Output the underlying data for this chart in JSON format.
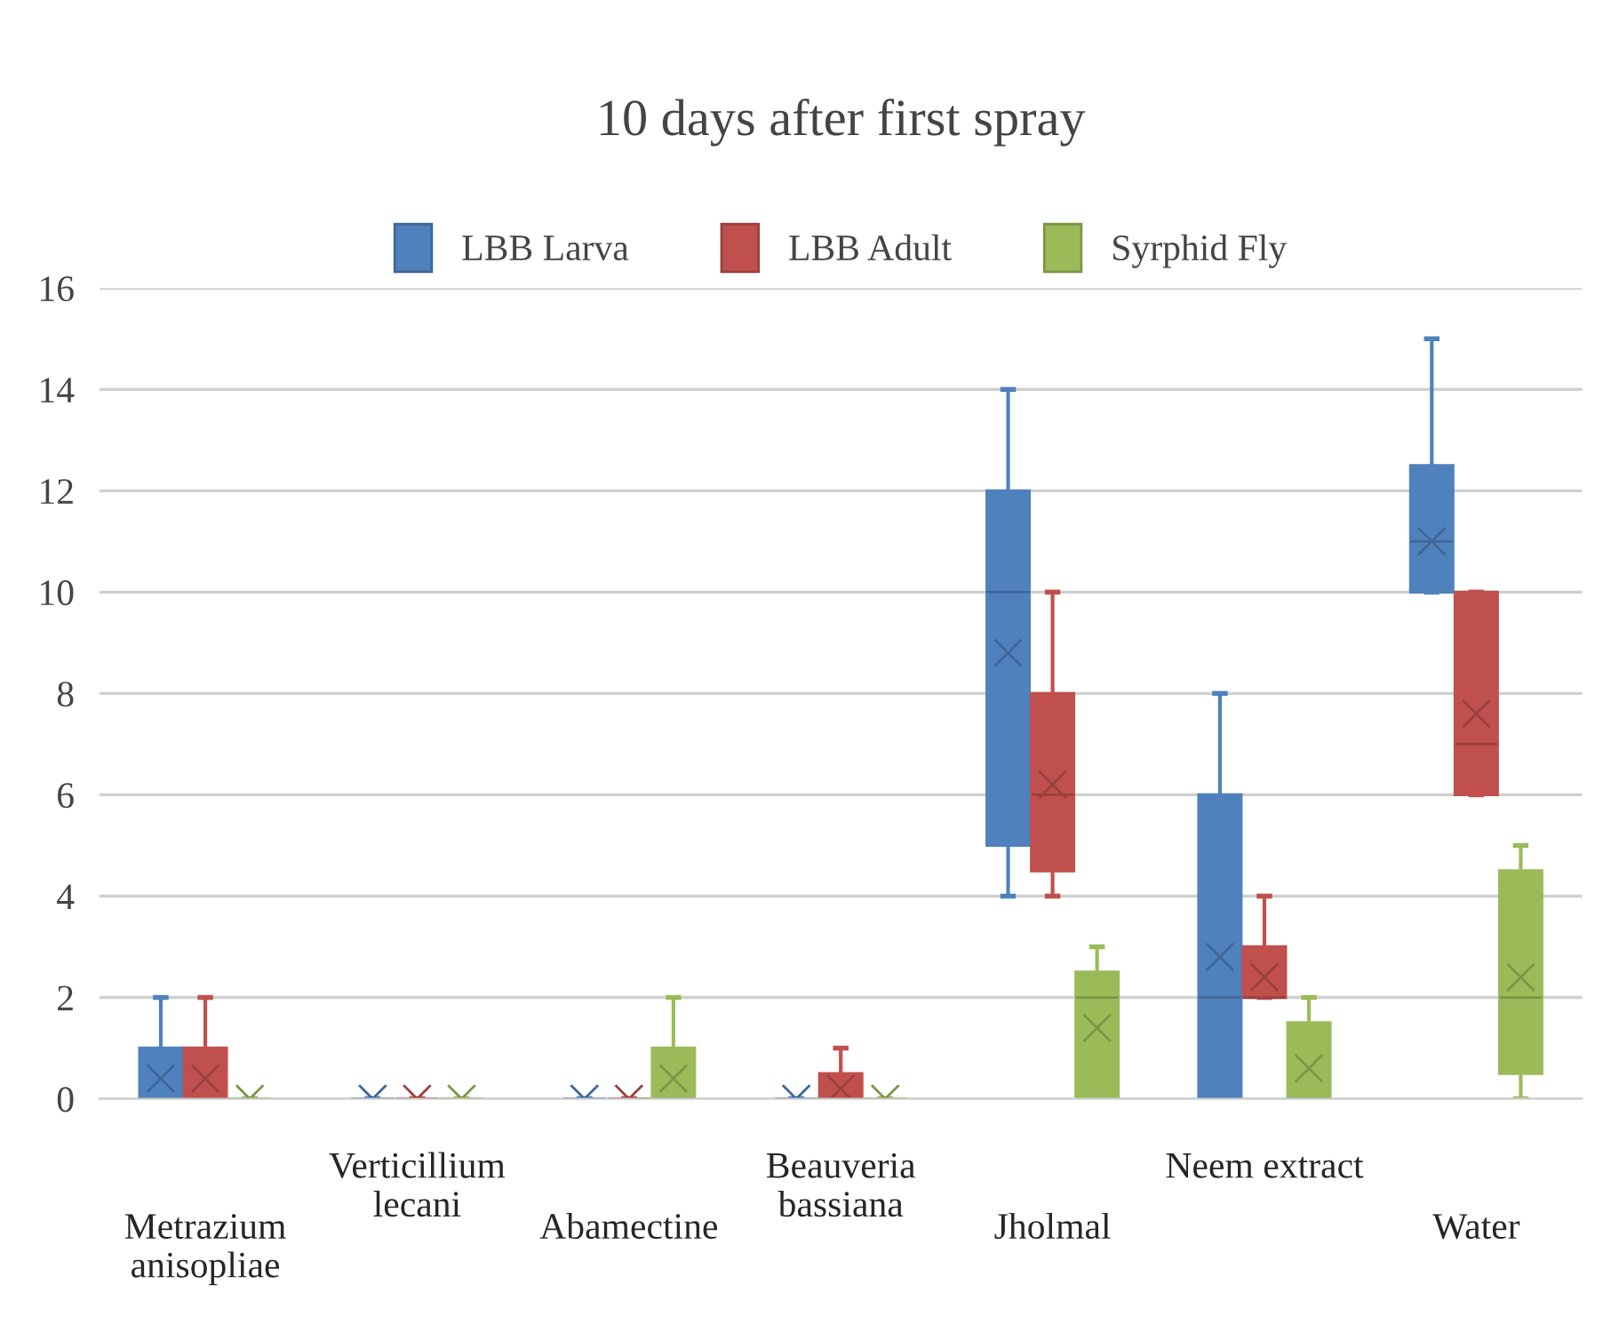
{
  "chart_data": {
    "type": "box",
    "title": "10 days after first spray",
    "categories": [
      "Metrazium\nanisopliae",
      "Verticillium\nlecani",
      "Abamectine",
      "Beauveria\nbassiana",
      "Jholmal",
      "Neem extract",
      "Water"
    ],
    "series": [
      {
        "name": "LBB Larva",
        "color": "#4f81bd",
        "boxes": [
          {
            "low": 0,
            "q1": 0,
            "median": 0,
            "q3": 1,
            "high": 2,
            "mean": 0.4
          },
          {
            "low": 0,
            "q1": 0,
            "median": 0,
            "q3": 0,
            "high": 0,
            "mean": 0
          },
          {
            "low": 0,
            "q1": 0,
            "median": 0,
            "q3": 0,
            "high": 0,
            "mean": 0
          },
          {
            "low": 0,
            "q1": 0,
            "median": 0,
            "q3": 0,
            "high": 0,
            "mean": 0
          },
          {
            "low": 4,
            "q1": 5,
            "median": 10,
            "q3": 12,
            "high": 14,
            "mean": 8.8
          },
          {
            "low": 0,
            "q1": 0,
            "median": 2,
            "q3": 6,
            "high": 8,
            "mean": 2.8
          },
          {
            "low": 10,
            "q1": 10,
            "median": 11,
            "q3": 12.5,
            "high": 15,
            "mean": 11
          }
        ]
      },
      {
        "name": "LBB Adult",
        "color": "#c0504d",
        "boxes": [
          {
            "low": 0,
            "q1": 0,
            "median": 0,
            "q3": 1,
            "high": 2,
            "mean": 0.4
          },
          {
            "low": 0,
            "q1": 0,
            "median": 0,
            "q3": 0,
            "high": 0,
            "mean": 0
          },
          {
            "low": 0,
            "q1": 0,
            "median": 0,
            "q3": 0,
            "high": 0,
            "mean": 0
          },
          {
            "low": 0,
            "q1": 0,
            "median": 0,
            "q3": 0.5,
            "high": 1,
            "mean": 0.2
          },
          {
            "low": 4,
            "q1": 4.5,
            "median": 6,
            "q3": 8,
            "high": 10,
            "mean": 6.2
          },
          {
            "low": 2,
            "q1": 2,
            "median": 2,
            "q3": 3,
            "high": 4,
            "mean": 2.4
          },
          {
            "low": 6,
            "q1": 6,
            "median": 7,
            "q3": 10,
            "high": 10,
            "mean": 7.6
          }
        ]
      },
      {
        "name": "Syrphid Fly",
        "color": "#9bbb59",
        "boxes": [
          {
            "low": 0,
            "q1": 0,
            "median": 0,
            "q3": 0,
            "high": 0,
            "mean": 0
          },
          {
            "low": 0,
            "q1": 0,
            "median": 0,
            "q3": 0,
            "high": 0,
            "mean": 0
          },
          {
            "low": 0,
            "q1": 0,
            "median": 0,
            "q3": 1,
            "high": 2,
            "mean": 0.4
          },
          {
            "low": 0,
            "q1": 0,
            "median": 0,
            "q3": 0,
            "high": 0,
            "mean": 0
          },
          {
            "low": 0,
            "q1": 0,
            "median": 2,
            "q3": 2.5,
            "high": 3,
            "mean": 1.4
          },
          {
            "low": 0,
            "q1": 0,
            "median": 0,
            "q3": 1.5,
            "high": 2,
            "mean": 0.6
          },
          {
            "low": 0,
            "q1": 0.5,
            "median": 2,
            "q3": 4.5,
            "high": 5,
            "mean": 2.4
          }
        ]
      }
    ],
    "ylim": [
      0,
      16
    ],
    "yticks": [
      0,
      2,
      4,
      6,
      8,
      10,
      12,
      14,
      16
    ],
    "grid": "y",
    "legend": "top",
    "marker": "cross"
  }
}
